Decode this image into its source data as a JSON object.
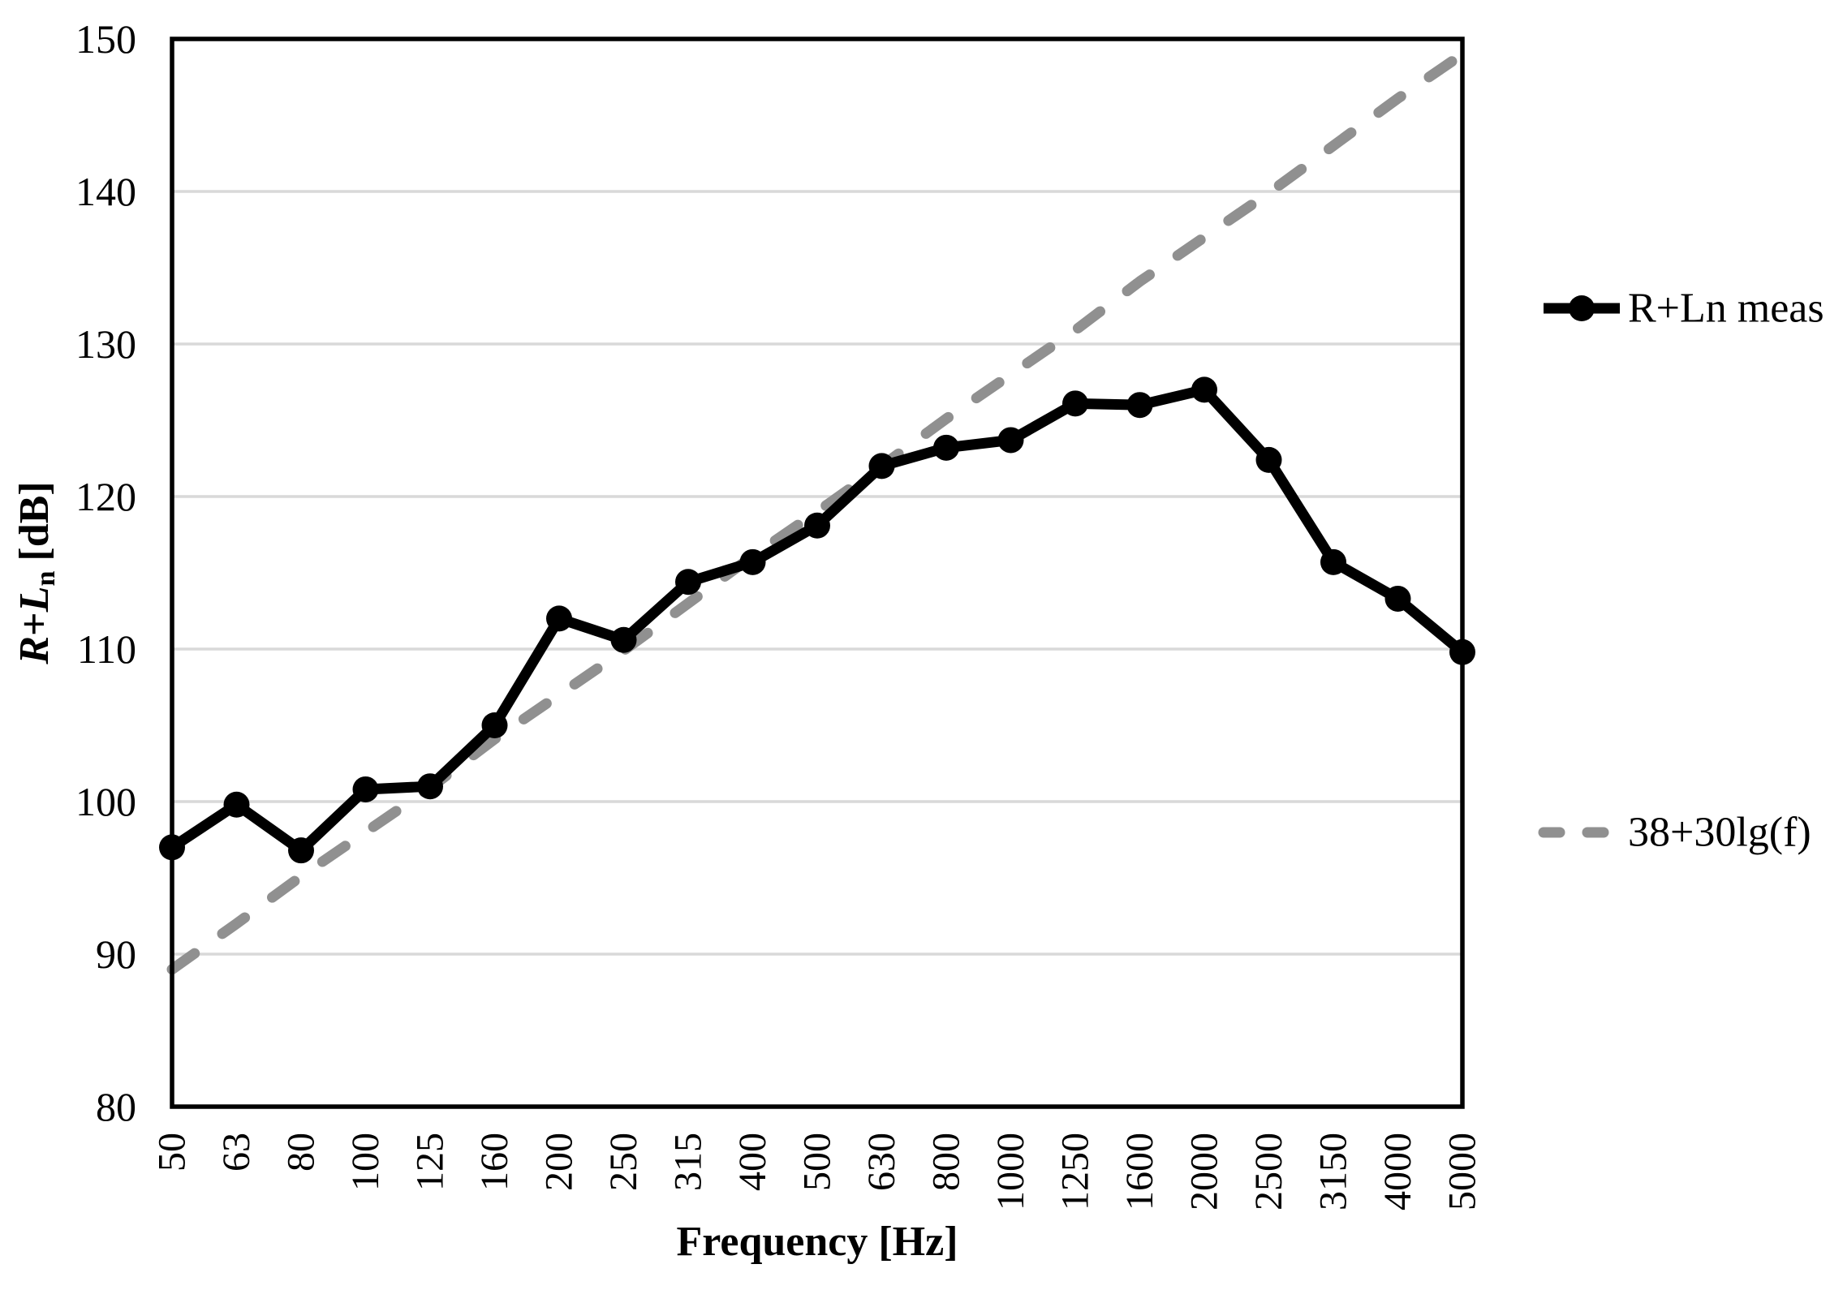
{
  "chart_data": {
    "type": "line",
    "title": "",
    "xlabel": "Frequency [Hz]",
    "ylabel": "R+Ln [dB]",
    "ylabel_parts": {
      "r": "R",
      "plus": "+",
      "l": "L",
      "sub": "n",
      "unit": "[dB]"
    },
    "categories": [
      "50",
      "63",
      "80",
      "100",
      "125",
      "160",
      "200",
      "250",
      "315",
      "400",
      "500",
      "630",
      "800",
      "1000",
      "1250",
      "1600",
      "2000",
      "2500",
      "3150",
      "4000",
      "5000"
    ],
    "series": [
      {
        "name": "R+Ln meas",
        "color": "#000000",
        "line_style": "solid",
        "marker": "circle",
        "values": [
          97.0,
          99.8,
          96.8,
          100.8,
          101.0,
          105.0,
          112.0,
          110.6,
          114.4,
          115.7,
          118.1,
          122.0,
          123.2,
          123.7,
          126.1,
          126.0,
          127.0,
          122.4,
          115.7,
          113.3,
          109.8
        ]
      },
      {
        "name": "38+30lg(f)",
        "color": "#909090",
        "line_style": "dashed",
        "marker": "none",
        "values": [
          89.0,
          92.0,
          95.1,
          98.0,
          100.9,
          104.1,
          107.0,
          109.9,
          113.0,
          116.1,
          119.0,
          122.0,
          125.1,
          128.0,
          130.9,
          134.1,
          137.0,
          139.9,
          143.0,
          146.1,
          149.0
        ]
      }
    ],
    "ylim": [
      80,
      150
    ],
    "yticks": [
      80,
      90,
      100,
      110,
      120,
      130,
      140,
      150
    ],
    "grid": "horizontal",
    "gridline_color": "#d9d9d9",
    "legend_position": "right"
  }
}
